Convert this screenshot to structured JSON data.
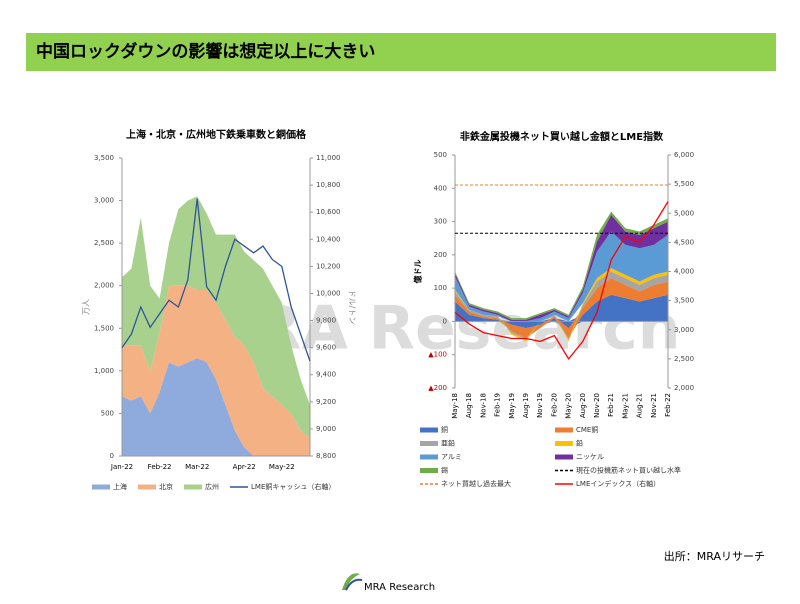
{
  "header": {
    "title": "中国ロックダウンの影響は想定以上に大きい"
  },
  "watermark": "MRA Research",
  "source": "出所：MRAリサーチ",
  "logo": "MRA Research",
  "chart_data": [
    {
      "type": "area",
      "title": "上海・北京・広州地下鉄乗車数と銅価格",
      "y_label": "万人",
      "y2_label": "ドル/トン",
      "categories": [
        "Jan-22",
        null,
        null,
        null,
        "Feb-22",
        null,
        null,
        null,
        "Mar-22",
        null,
        null,
        null,
        null,
        "Apr-22",
        null,
        null,
        null,
        "May-22",
        null,
        null,
        null
      ],
      "ylim": [
        0,
        3500
      ],
      "yticks": [
        0,
        500,
        {
          "value": 1000,
          "label": "1,000"
        },
        {
          "value": 1500,
          "label": "1,500"
        },
        {
          "value": 2000,
          "label": "2,000"
        },
        {
          "value": 2500,
          "label": "2,500"
        },
        {
          "value": 3000,
          "label": "3,000"
        },
        {
          "value": 3500,
          "label": "3,500"
        }
      ],
      "y2lim": [
        8800,
        11000
      ],
      "y2ticks": [
        {
          "value": 8800,
          "label": "8,800"
        },
        {
          "value": 9000,
          "label": "9,000"
        },
        {
          "value": 9200,
          "label": "9,200"
        },
        {
          "value": 9400,
          "label": "9,400"
        },
        {
          "value": 9600,
          "label": "9,600"
        },
        {
          "value": 9800,
          "label": "9,800"
        },
        {
          "value": 10000,
          "label": "10,000"
        },
        {
          "value": 10200,
          "label": "10,200"
        },
        {
          "value": 10400,
          "label": "10,400"
        },
        {
          "value": 10600,
          "label": "10,600"
        },
        {
          "value": 10800,
          "label": "10,800"
        },
        {
          "value": 11000,
          "label": "11,000"
        }
      ],
      "series": [
        {
          "name": "上海",
          "color": "#8faadc",
          "values": [
            700,
            650,
            700,
            500,
            750,
            1100,
            1050,
            1100,
            1150,
            1100,
            900,
            600,
            300,
            100,
            0,
            0,
            0,
            0,
            0,
            0,
            0
          ]
        },
        {
          "name": "北京",
          "color": "#f4b183",
          "values": [
            600,
            650,
            600,
            500,
            700,
            900,
            950,
            900,
            800,
            850,
            900,
            1000,
            1100,
            1200,
            1100,
            800,
            700,
            600,
            500,
            300,
            200
          ]
        },
        {
          "name": "広州",
          "color": "#a9d18e",
          "values": [
            800,
            900,
            1500,
            1000,
            400,
            500,
            900,
            1000,
            1100,
            900,
            800,
            1000,
            1200,
            1100,
            1200,
            1400,
            1300,
            1200,
            800,
            600,
            400
          ]
        },
        {
          "name": "LME銅キャッシュ（右軸）",
          "color": "#2f5597",
          "type": "line",
          "axis": "y2",
          "values": [
            9600,
            9700,
            9900,
            9750,
            9850,
            9950,
            9900,
            10100,
            10700,
            10050,
            9950,
            10200,
            10400,
            10350,
            10300,
            10350,
            10250,
            10200,
            9900,
            9700,
            9500
          ]
        }
      ]
    },
    {
      "type": "area",
      "title": "非鉄金属投機ネット買い越し金額とLME指数",
      "y_label": "億ドル",
      "categories": [
        "May-18",
        "Aug-18",
        "Nov-18",
        "Feb-19",
        "May-19",
        "Aug-19",
        "Nov-19",
        "Feb-20",
        "May-20",
        "Aug-20",
        "Nov-20",
        "Feb-21",
        "May-21",
        "Aug-21",
        "Nov-21",
        "Feb-22"
      ],
      "ylim": [
        -200,
        500
      ],
      "yticks": [
        {
          "value": -200,
          "label": "▲200"
        },
        {
          "value": -100,
          "label": "▲100"
        },
        0,
        100,
        200,
        300,
        400,
        500
      ],
      "y2lim": [
        2000,
        6000
      ],
      "y2ticks": [
        {
          "value": 2000,
          "label": "2,000"
        },
        {
          "value": 2500,
          "label": "2,500"
        },
        {
          "value": 3000,
          "label": "3,000"
        },
        {
          "value": 3500,
          "label": "3,500"
        },
        {
          "value": 4000,
          "label": "4,000"
        },
        {
          "value": 4500,
          "label": "4,500"
        },
        {
          "value": 5000,
          "label": "5,000"
        },
        {
          "value": 5500,
          "label": "5,500"
        },
        {
          "value": 6000,
          "label": "6,000"
        }
      ],
      "series": [
        {
          "name": "銅",
          "color": "#4472c4",
          "values": [
            60,
            20,
            10,
            5,
            -10,
            -20,
            -10,
            10,
            -20,
            20,
            60,
            80,
            70,
            60,
            70,
            80
          ]
        },
        {
          "name": "CME銅",
          "color": "#ed7d31",
          "values": [
            20,
            10,
            5,
            5,
            -20,
            -30,
            -10,
            5,
            -30,
            20,
            40,
            50,
            40,
            30,
            40,
            40
          ]
        },
        {
          "name": "亜鉛",
          "color": "#a5a5a5",
          "values": [
            10,
            5,
            5,
            5,
            -5,
            -5,
            0,
            5,
            -5,
            10,
            20,
            20,
            20,
            20,
            20,
            20
          ]
        },
        {
          "name": "鉛",
          "color": "#ffc000",
          "values": [
            5,
            0,
            0,
            0,
            -5,
            -5,
            0,
            0,
            -5,
            5,
            10,
            10,
            10,
            10,
            10,
            10
          ]
        },
        {
          "name": "アルミ",
          "color": "#5b9bd5",
          "values": [
            40,
            10,
            10,
            5,
            0,
            0,
            10,
            10,
            10,
            30,
            80,
            110,
            90,
            100,
            90,
            110
          ]
        },
        {
          "name": "ニッケル",
          "color": "#7030a0",
          "values": [
            10,
            5,
            5,
            5,
            5,
            5,
            10,
            5,
            5,
            10,
            30,
            50,
            40,
            40,
            50,
            40
          ]
        },
        {
          "name": "錫",
          "color": "#70ad47",
          "values": [
            5,
            5,
            5,
            5,
            5,
            5,
            5,
            5,
            5,
            10,
            20,
            10,
            10,
            10,
            10,
            10
          ]
        },
        {
          "name": "LMEインデックス（右軸）",
          "color": "#ff0000",
          "type": "line",
          "axis": "y2",
          "values": [
            3300,
            3100,
            2950,
            2900,
            2850,
            2850,
            2800,
            2900,
            2500,
            2800,
            3300,
            4200,
            4600,
            4500,
            4800,
            5200
          ]
        }
      ],
      "reference_lines": [
        {
          "name": "現在の投機筋ネット買い越し水準",
          "color": "#000000",
          "value": 265
        },
        {
          "name": "ネット買越し過去最大",
          "color": "#ed7d31",
          "value": 410
        }
      ]
    }
  ]
}
